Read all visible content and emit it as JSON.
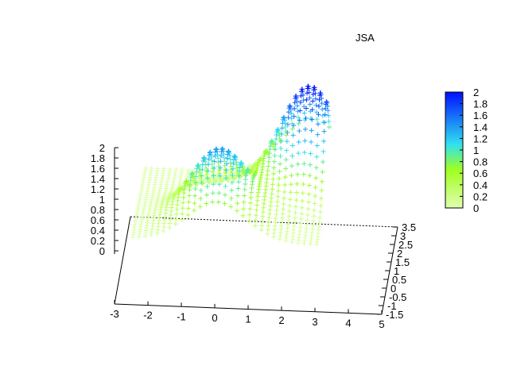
{
  "chart_data": {
    "type": "scatter",
    "subtype": "3d-surface-points",
    "title": "JSA",
    "xlabel": "",
    "ylabel": "",
    "zlabel": "",
    "xlim": [
      -3,
      5
    ],
    "ylim": [
      -1.5,
      3.5
    ],
    "zlim": [
      0,
      2
    ],
    "x_ticks": [
      "-3",
      "-2",
      "-1",
      "0",
      "1",
      "2",
      "3",
      "4",
      "5"
    ],
    "y_ticks": [
      "-1.5",
      "-1",
      "-0.5",
      "0",
      "0.5",
      "1",
      "1.5",
      "2",
      "2.5",
      "3",
      "3.5"
    ],
    "z_ticks": [
      "0",
      "0.2",
      "0.4",
      "0.6",
      "0.8",
      "1",
      "1.2",
      "1.4",
      "1.6",
      "1.8",
      "2"
    ],
    "colorbar": {
      "range": [
        0,
        2
      ],
      "ticks": [
        "0",
        "0.2",
        "0.4",
        "0.6",
        "0.8",
        "1",
        "1.2",
        "1.4",
        "1.6",
        "1.8",
        "2"
      ],
      "colors": [
        "#e0ffb0",
        "#a0ff20",
        "#30e0f0",
        "#0010ff"
      ]
    },
    "point_marker": "+",
    "grid": false,
    "series": [
      {
        "peaks": [
          {
            "x": 0,
            "y": 0,
            "z": 1.4
          },
          {
            "x": 2.5,
            "y": 2,
            "z": 2.0
          }
        ],
        "x_range": [
          -2.5,
          3
        ],
        "y_range": [
          -1,
          3
        ]
      }
    ]
  }
}
